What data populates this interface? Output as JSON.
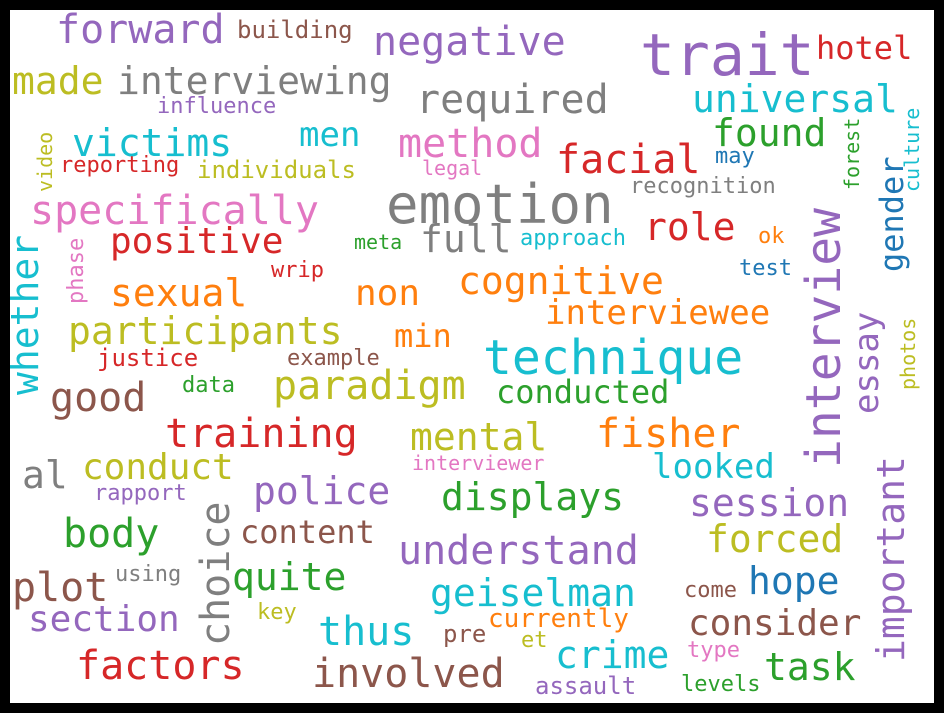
{
  "palette": {
    "blue": "#1f77b4",
    "orange": "#ff7f0e",
    "green": "#2ca02c",
    "red": "#d62728",
    "purple": "#9467bd",
    "brown": "#8c564b",
    "pink": "#e377c2",
    "gray": "#7f7f7f",
    "olive": "#bcbd22",
    "cyan": "#17becf"
  },
  "words": [
    {
      "text": "forward",
      "color": "purple"
    },
    {
      "text": "building",
      "color": "brown"
    },
    {
      "text": "negative",
      "color": "purple"
    },
    {
      "text": "trait",
      "color": "purple"
    },
    {
      "text": "hotel",
      "color": "red"
    },
    {
      "text": "made",
      "color": "olive"
    },
    {
      "text": "interviewing",
      "color": "gray"
    },
    {
      "text": "required",
      "color": "gray"
    },
    {
      "text": "universal",
      "color": "cyan"
    },
    {
      "text": "influence",
      "color": "purple"
    },
    {
      "text": "video",
      "color": "olive"
    },
    {
      "text": "victims",
      "color": "cyan"
    },
    {
      "text": "men",
      "color": "cyan"
    },
    {
      "text": "method",
      "color": "pink"
    },
    {
      "text": "found",
      "color": "green"
    },
    {
      "text": "culture",
      "color": "cyan"
    },
    {
      "text": "reporting",
      "color": "red"
    },
    {
      "text": "individuals",
      "color": "olive"
    },
    {
      "text": "legal",
      "color": "pink"
    },
    {
      "text": "facial",
      "color": "red"
    },
    {
      "text": "may",
      "color": "blue"
    },
    {
      "text": "forest",
      "color": "green"
    },
    {
      "text": "recognition",
      "color": "gray"
    },
    {
      "text": "interview",
      "color": "purple"
    },
    {
      "text": "specifically",
      "color": "pink"
    },
    {
      "text": "emotion",
      "color": "gray"
    },
    {
      "text": "gender",
      "color": "blue"
    },
    {
      "text": "whether",
      "color": "cyan"
    },
    {
      "text": "phase",
      "color": "pink"
    },
    {
      "text": "positive",
      "color": "red"
    },
    {
      "text": "full",
      "color": "gray"
    },
    {
      "text": "meta",
      "color": "green"
    },
    {
      "text": "approach",
      "color": "cyan"
    },
    {
      "text": "role",
      "color": "red"
    },
    {
      "text": "ok",
      "color": "orange"
    },
    {
      "text": "test",
      "color": "blue"
    },
    {
      "text": "wrip",
      "color": "red"
    },
    {
      "text": "sexual",
      "color": "orange"
    },
    {
      "text": "non",
      "color": "orange"
    },
    {
      "text": "cognitive",
      "color": "orange"
    },
    {
      "text": "essay",
      "color": "purple"
    },
    {
      "text": "photos",
      "color": "olive"
    },
    {
      "text": "participants",
      "color": "olive"
    },
    {
      "text": "min",
      "color": "orange"
    },
    {
      "text": "interviewee",
      "color": "orange"
    },
    {
      "text": "justice",
      "color": "red"
    },
    {
      "text": "example",
      "color": "brown"
    },
    {
      "text": "technique",
      "color": "cyan"
    },
    {
      "text": "data",
      "color": "green"
    },
    {
      "text": "paradigm",
      "color": "olive"
    },
    {
      "text": "good",
      "color": "brown"
    },
    {
      "text": "conducted",
      "color": "green"
    },
    {
      "text": "training",
      "color": "red"
    },
    {
      "text": "mental",
      "color": "olive"
    },
    {
      "text": "fisher",
      "color": "orange"
    },
    {
      "text": "important",
      "color": "purple"
    },
    {
      "text": "al",
      "color": "gray"
    },
    {
      "text": "conduct",
      "color": "olive"
    },
    {
      "text": "interviewer",
      "color": "pink"
    },
    {
      "text": "looked",
      "color": "cyan"
    },
    {
      "text": "rapport",
      "color": "purple"
    },
    {
      "text": "police",
      "color": "purple"
    },
    {
      "text": "displays",
      "color": "green"
    },
    {
      "text": "session",
      "color": "purple"
    },
    {
      "text": "choice",
      "color": "gray"
    },
    {
      "text": "body",
      "color": "green"
    },
    {
      "text": "content",
      "color": "brown"
    },
    {
      "text": "understand",
      "color": "purple"
    },
    {
      "text": "forced",
      "color": "olive"
    },
    {
      "text": "plot",
      "color": "brown"
    },
    {
      "text": "using",
      "color": "gray"
    },
    {
      "text": "quite",
      "color": "green"
    },
    {
      "text": "hope",
      "color": "blue"
    },
    {
      "text": "geiselman",
      "color": "cyan"
    },
    {
      "text": "come",
      "color": "brown"
    },
    {
      "text": "section",
      "color": "purple"
    },
    {
      "text": "key",
      "color": "olive"
    },
    {
      "text": "currently",
      "color": "orange"
    },
    {
      "text": "consider",
      "color": "brown"
    },
    {
      "text": "thus",
      "color": "cyan"
    },
    {
      "text": "pre",
      "color": "brown"
    },
    {
      "text": "et",
      "color": "olive"
    },
    {
      "text": "crime",
      "color": "cyan"
    },
    {
      "text": "type",
      "color": "pink"
    },
    {
      "text": "factors",
      "color": "red"
    },
    {
      "text": "involved",
      "color": "brown"
    },
    {
      "text": "task",
      "color": "green"
    },
    {
      "text": "assault",
      "color": "purple"
    },
    {
      "text": "levels",
      "color": "green"
    }
  ]
}
